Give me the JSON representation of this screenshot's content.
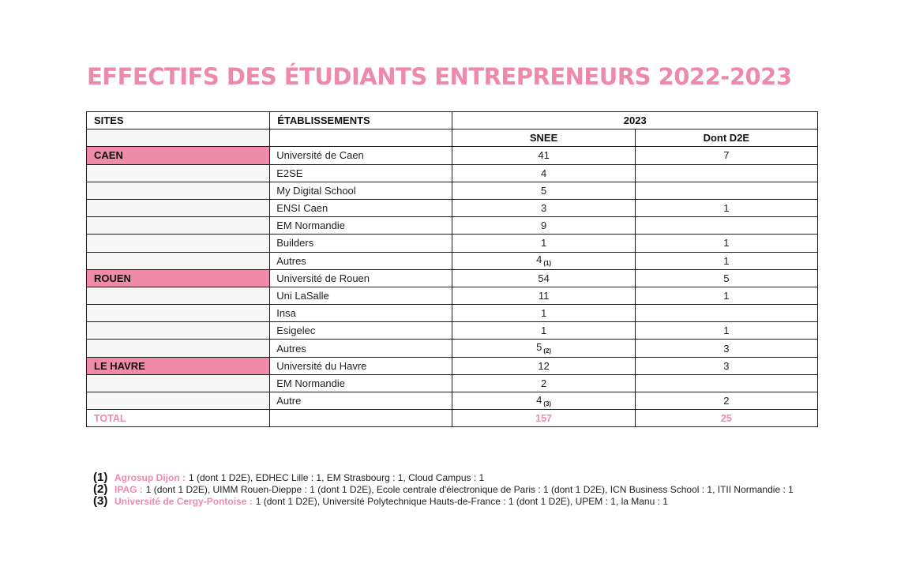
{
  "title": "EFFECTIFS DES ÉTUDIANTS ENTREPRENEURS 2022-2023",
  "accent_color": "#ee8aa9",
  "site_highlight_color": "#f08aa9",
  "table": {
    "headers": {
      "sites": "SITES",
      "etablissements": "ÉTABLISSEMENTS",
      "year": "2023",
      "snee": "SNEE",
      "d2e": "Dont D2E"
    },
    "rows": [
      {
        "site": "CAEN",
        "etab": "Université de Caen",
        "snee": "41",
        "note": "",
        "d2e": "7"
      },
      {
        "site": "",
        "etab": "E2SE",
        "snee": "4",
        "note": "",
        "d2e": ""
      },
      {
        "site": "",
        "etab": "My Digital School",
        "snee": "5",
        "note": "",
        "d2e": ""
      },
      {
        "site": "",
        "etab": "ENSI Caen",
        "snee": "3",
        "note": "",
        "d2e": "1"
      },
      {
        "site": "",
        "etab": "EM Normandie",
        "snee": "9",
        "note": "",
        "d2e": ""
      },
      {
        "site": "",
        "etab": "Builders",
        "snee": "1",
        "note": "",
        "d2e": "1"
      },
      {
        "site": "",
        "etab": "Autres",
        "snee": "4",
        "note": "(1)",
        "d2e": "1"
      },
      {
        "site": "ROUEN",
        "etab": "Université de Rouen",
        "snee": "54",
        "note": "",
        "d2e": "5"
      },
      {
        "site": "",
        "etab": "Uni LaSalle",
        "snee": "11",
        "note": "",
        "d2e": "1"
      },
      {
        "site": "",
        "etab": "Insa",
        "snee": "1",
        "note": "",
        "d2e": ""
      },
      {
        "site": "",
        "etab": "Esigelec",
        "snee": "1",
        "note": "",
        "d2e": "1"
      },
      {
        "site": "",
        "etab": "Autres",
        "snee": "5",
        "note": "(2)",
        "d2e": "3"
      },
      {
        "site": "LE HAVRE",
        "etab": "Université du Havre",
        "snee": "12",
        "note": "",
        "d2e": "3"
      },
      {
        "site": "",
        "etab": "EM Normandie",
        "snee": "2",
        "note": "",
        "d2e": ""
      },
      {
        "site": "",
        "etab": "Autre",
        "snee": "4",
        "note": "(3)",
        "d2e": "2"
      }
    ],
    "total": {
      "label": "TOTAL",
      "snee": "157",
      "d2e": "25"
    }
  },
  "footnotes": [
    {
      "num": "(1)",
      "highlight": "Agrosup Dijon :",
      "text": "1 (dont 1 D2E), EDHEC Lille : 1, EM Strasbourg : 1, Cloud Campus : 1"
    },
    {
      "num": "(2)",
      "highlight": "IPAG :",
      "text": "1 (dont 1 D2E), UIMM Rouen-Dieppe : 1 (dont 1 D2E), Ecole centrale d'électronique de Paris : 1 (dont 1 D2E), ICN Business School : 1, ITII Normandie : 1"
    },
    {
      "num": "(3)",
      "highlight": "Université de Cergy-Pontoise :",
      "text": "1 (dont 1 D2E), Université Polytechnique Hauts-de-France : 1 (dont 1 D2E), UPEM : 1, la Manu : 1"
    }
  ]
}
